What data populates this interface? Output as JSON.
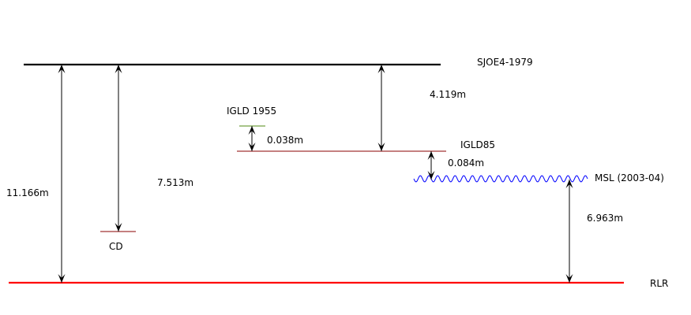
{
  "datums": {
    "sjoe": {
      "name": "SJOE4-1979",
      "color": "#000000"
    },
    "igld1955": {
      "name": "IGLD 1955",
      "color": "#4f8a10"
    },
    "igld85": {
      "name": "IGLD85",
      "color": "#8b0000"
    },
    "msl": {
      "name": "MSL (2003-04)",
      "color": "#0000ff"
    },
    "cd": {
      "name": "CD",
      "color": "#8b0000"
    },
    "rlr": {
      "name": "RLR",
      "color": "#ff0000"
    }
  },
  "measurements": {
    "sjoe_to_rlr": "11.166m",
    "sjoe_to_cd": "7.513m",
    "sjoe_to_igld85": "4.119m",
    "igld1955_to_igld85": "0.038m",
    "igld85_to_msl": "0.084m",
    "msl_to_rlr": "6.963m"
  },
  "arrow_color": "#000000"
}
